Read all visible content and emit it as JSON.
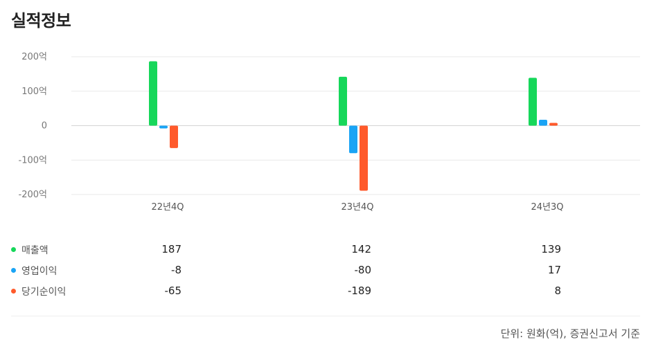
{
  "section_title": "실적정보",
  "chart_data": {
    "type": "bar",
    "categories": [
      "22년4Q",
      "23년4Q",
      "24년3Q"
    ],
    "series": [
      {
        "name": "매출액",
        "color": "#16d75a",
        "values": [
          187,
          142,
          139
        ]
      },
      {
        "name": "영업이익",
        "color": "#1aa4f5",
        "values": [
          -8,
          -80,
          17
        ]
      },
      {
        "name": "당기순이익",
        "color": "#ff5a2b",
        "values": [
          -65,
          -189,
          8
        ]
      }
    ],
    "ylim": [
      -200,
      200
    ],
    "yticks": [
      200,
      100,
      0,
      -100,
      -200
    ],
    "ytick_labels": [
      "200억",
      "100억",
      "0",
      "-100억",
      "-200억"
    ],
    "grid": true
  },
  "table": {
    "rows": [
      {
        "label": "매출액",
        "color": "#16d75a",
        "values": [
          "187",
          "142",
          "139"
        ]
      },
      {
        "label": "영업이익",
        "color": "#1aa4f5",
        "values": [
          "-8",
          "-80",
          "17"
        ]
      },
      {
        "label": "당기순이익",
        "color": "#ff5a2b",
        "values": [
          "-65",
          "-189",
          "8"
        ]
      }
    ]
  },
  "unit_note": "단위: 원화(억), 증권신고서 기준"
}
